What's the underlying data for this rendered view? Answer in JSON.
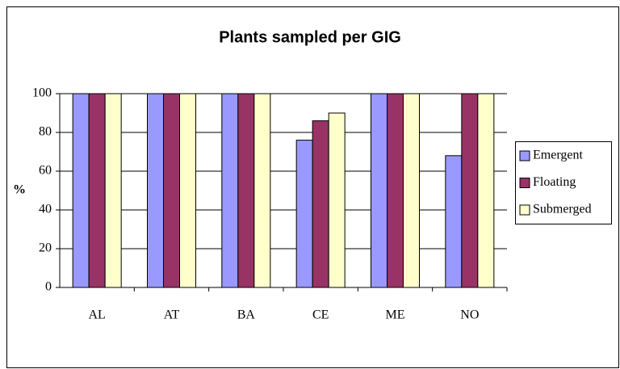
{
  "chart_data": {
    "type": "bar",
    "title": "Plants sampled per GIG",
    "y_label": "%",
    "categories": [
      "AL",
      "AT",
      "BA",
      "CE",
      "ME",
      "NO"
    ],
    "series": [
      {
        "name": "Emergent",
        "color": "#9999ff",
        "values": [
          100,
          100,
          100,
          76,
          100,
          68
        ]
      },
      {
        "name": "Floating",
        "color": "#993366",
        "values": [
          100,
          100,
          100,
          86,
          100,
          100
        ]
      },
      {
        "name": "Submerged",
        "color": "#ffffcc",
        "values": [
          100,
          100,
          100,
          90,
          100,
          100
        ]
      }
    ],
    "ylim": [
      0,
      100
    ],
    "yticks": [
      0,
      20,
      40,
      60,
      80,
      100
    ],
    "grid": true,
    "legend": "right"
  }
}
